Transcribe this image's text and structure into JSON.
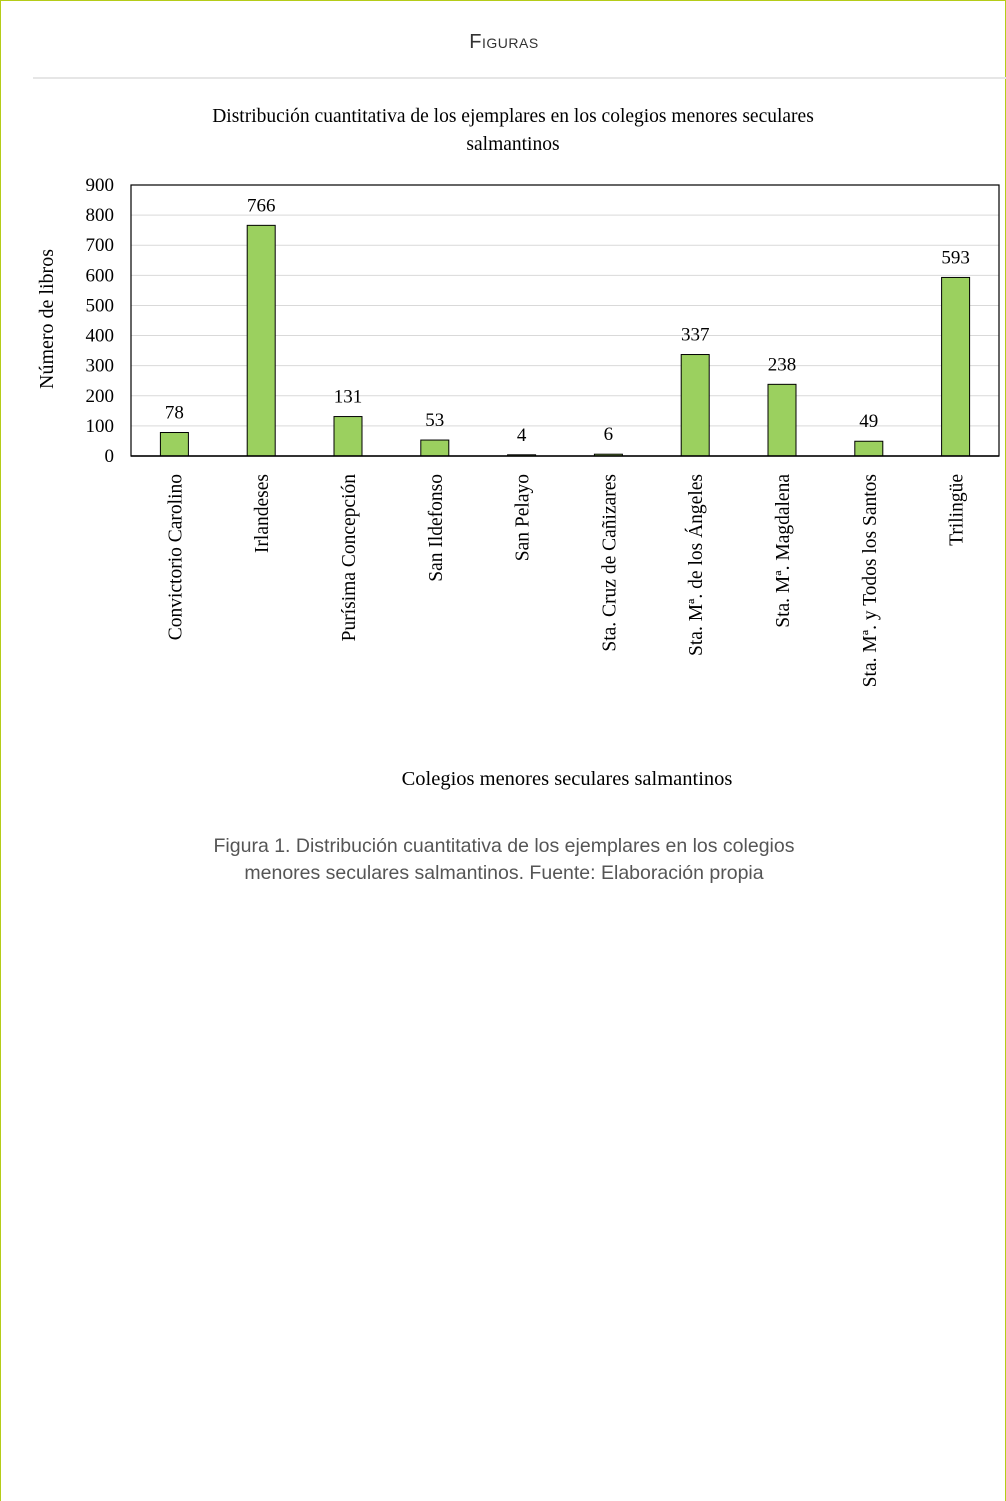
{
  "section": {
    "title": "Figuras"
  },
  "caption": {
    "line1": "Figura 1. Distribución cuantitativa de los ejemplares en los colegios",
    "line2": "menores seculares salmantinos. Fuente: Elaboración propia"
  },
  "colors": {
    "bar": "#9bd05f",
    "bar_stroke": "#000000",
    "grid": "#d9d9d9",
    "panel_border": "#b5cc18"
  },
  "chart_data": {
    "type": "bar",
    "title_line1": "Distribución cuantitativa de los ejemplares en los colegios menores seculares",
    "title_line2": "salmantinos",
    "xlabel": "Colegios menores seculares salmantinos",
    "ylabel": "Número de libros",
    "ylim": [
      0,
      900
    ],
    "yticks": [
      0,
      100,
      200,
      300,
      400,
      500,
      600,
      700,
      800,
      900
    ],
    "grid": true,
    "categories": [
      "Convictorio Carolino",
      "Irlandeses",
      "Purísima Concepción",
      "San Ildefonso",
      "San Pelayo",
      "Sta. Cruz de Cañizares",
      "Sta. Mª. de los Ángeles",
      "Sta. Mª. Magdalena",
      "Sta. Mª. y Todos los Santos",
      "Trilingüe"
    ],
    "values": [
      78,
      766,
      131,
      53,
      4,
      6,
      337,
      238,
      49,
      593
    ]
  }
}
